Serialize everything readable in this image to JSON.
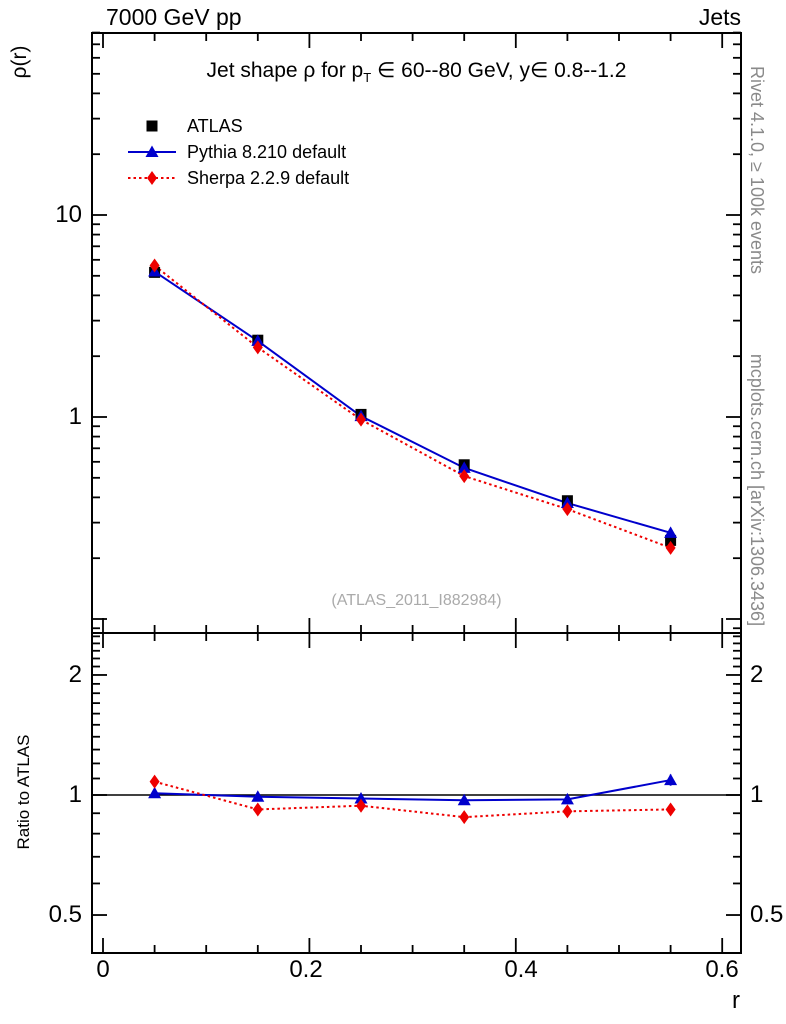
{
  "header": {
    "left": "7000 GeV pp",
    "right": "Jets"
  },
  "side_notes": {
    "top_right": "Rivet 4.1.0, ≥ 100k events",
    "bottom_right": "mcplots.cern.ch [arXiv:1306.3436]"
  },
  "main_panel": {
    "y_axis_title": "ρ(r)",
    "title_prefix": "Jet shape ρ for p",
    "title_sub": "T",
    "title_suffix": " ∈ 60--80 GeV, y∈ 0.8--1.2",
    "watermark": "(ATLAS_2011_I882984)",
    "y_tick_labels": [
      "10",
      "1"
    ]
  },
  "ratio_panel": {
    "y_axis_title": "Ratio to ATLAS",
    "y_tick_labels": [
      "2",
      "1",
      "0.5"
    ]
  },
  "x_axis": {
    "tick_labels": [
      "0",
      "0.2",
      "0.4",
      "0.6"
    ],
    "title": "r"
  },
  "legend": [
    {
      "label": "ATLAS",
      "marker": "square",
      "color": "#000000",
      "line": "none"
    },
    {
      "label": "Pythia 8.210 default",
      "marker": "triangle",
      "color": "#0000cc",
      "line": "solid"
    },
    {
      "label": "Sherpa 2.2.9 default",
      "marker": "diamond",
      "color": "#ee0000",
      "line": "dotted"
    }
  ],
  "chart_data": {
    "type": "line",
    "title": "Jet shape ρ for pT ∈ 60--80 GeV, y∈ 0.8--1.2",
    "xlabel": "r",
    "x": [
      0.05,
      0.15,
      0.25,
      0.35,
      0.45,
      0.55
    ],
    "x_range": [
      -0.011,
      0.617
    ],
    "x_minor_step": 0.05,
    "x_major_step": 0.2,
    "main": {
      "ylabel": "ρ(r)",
      "yscale": "log",
      "ylim": [
        0.085,
        82
      ],
      "y_labeled_ticks": [
        10,
        1
      ],
      "series": [
        {
          "name": "ATLAS",
          "color": "#000000",
          "marker": "square",
          "line": "none",
          "values": [
            5.2,
            2.4,
            1.03,
            0.58,
            0.385,
            0.245
          ],
          "errors": [
            0.13,
            0.06,
            0.025,
            0.015,
            0.012,
            0.009
          ]
        },
        {
          "name": "Pythia 8.210 default",
          "color": "#0000cc",
          "marker": "triangle",
          "line": "solid",
          "values": [
            5.25,
            2.38,
            1.01,
            0.56,
            0.375,
            0.267
          ],
          "errors": [
            0.05,
            0.02,
            0.01,
            0.008,
            0.007,
            0.006
          ]
        },
        {
          "name": "Sherpa 2.2.9 default",
          "color": "#ee0000",
          "marker": "diamond",
          "line": "dotted",
          "values": [
            5.62,
            2.21,
            0.97,
            0.51,
            0.35,
            0.225
          ],
          "errors": [
            0.05,
            0.02,
            0.01,
            0.008,
            0.007,
            0.006
          ]
        }
      ]
    },
    "ratio": {
      "ylabel": "Ratio to ATLAS",
      "yscale": "log",
      "ylim": [
        0.4,
        2.55
      ],
      "y_labeled_ticks": [
        2,
        1,
        0.5
      ],
      "reference_line": 1,
      "series": [
        {
          "name": "Pythia 8.210 default",
          "color": "#0000cc",
          "marker": "triangle",
          "line": "solid",
          "values": [
            1.01,
            0.99,
            0.98,
            0.97,
            0.975,
            1.09
          ],
          "errors": [
            0.02,
            0.015,
            0.02,
            0.02,
            0.025,
            0.035
          ]
        },
        {
          "name": "Sherpa 2.2.9 default",
          "color": "#ee0000",
          "marker": "diamond",
          "line": "dotted",
          "values": [
            1.08,
            0.92,
            0.94,
            0.88,
            0.91,
            0.92
          ],
          "errors": [
            0.025,
            0.015,
            0.02,
            0.015,
            0.02,
            0.02
          ]
        }
      ]
    }
  }
}
